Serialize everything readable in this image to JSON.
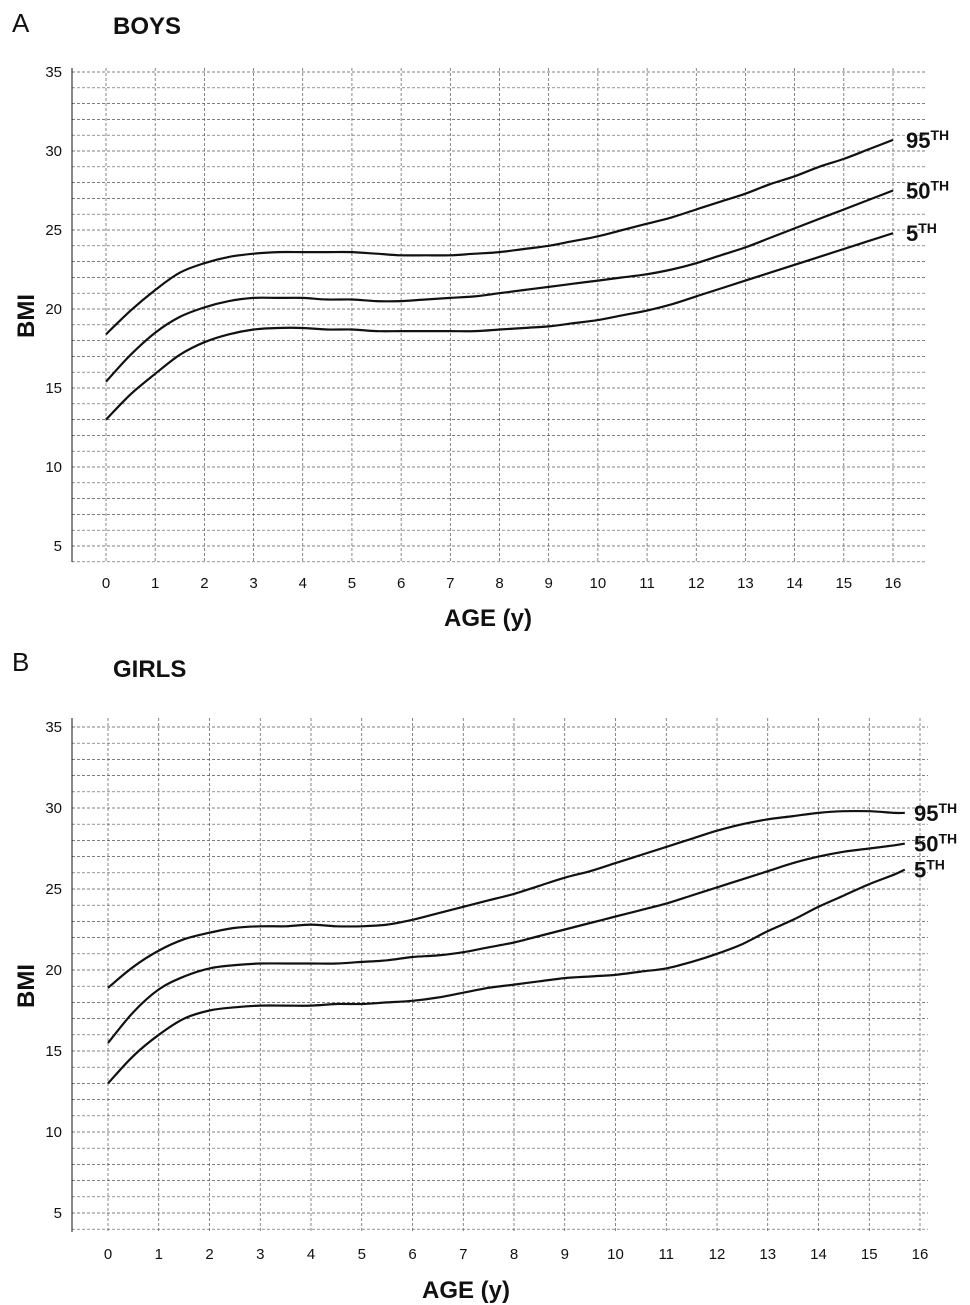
{
  "chart_data": [
    {
      "type": "line",
      "panel": "A",
      "title": "BOYS",
      "xlabel": "AGE (y)",
      "ylabel": "BMI",
      "xlim": [
        0,
        16
      ],
      "ylim": [
        5,
        35
      ],
      "xticks": [
        0,
        1,
        2,
        3,
        4,
        5,
        6,
        7,
        8,
        9,
        10,
        11,
        12,
        13,
        14,
        15,
        16
      ],
      "yticks": [
        5,
        10,
        15,
        20,
        25,
        30,
        35
      ],
      "grid": true,
      "x": [
        0,
        0.5,
        1,
        1.5,
        2,
        2.5,
        3,
        3.5,
        4,
        4.5,
        5,
        5.5,
        6,
        6.5,
        7,
        7.5,
        8,
        8.5,
        9,
        9.5,
        10,
        10.5,
        11,
        11.5,
        12,
        12.5,
        13,
        13.5,
        14,
        14.5,
        15,
        15.5,
        16
      ],
      "series": [
        {
          "name": "95",
          "suffix": "TH",
          "values": [
            18.4,
            19.9,
            21.2,
            22.3,
            22.9,
            23.3,
            23.5,
            23.6,
            23.6,
            23.6,
            23.6,
            23.5,
            23.4,
            23.4,
            23.4,
            23.5,
            23.6,
            23.8,
            24.0,
            24.3,
            24.6,
            25.0,
            25.4,
            25.8,
            26.3,
            26.8,
            27.3,
            27.9,
            28.4,
            29.0,
            29.5,
            30.1,
            30.7
          ]
        },
        {
          "name": "50",
          "suffix": "TH",
          "values": [
            15.4,
            17.1,
            18.5,
            19.5,
            20.1,
            20.5,
            20.7,
            20.7,
            20.7,
            20.6,
            20.6,
            20.5,
            20.5,
            20.6,
            20.7,
            20.8,
            21.0,
            21.2,
            21.4,
            21.6,
            21.8,
            22.0,
            22.2,
            22.5,
            22.9,
            23.4,
            23.9,
            24.5,
            25.1,
            25.7,
            26.3,
            26.9,
            27.5
          ]
        },
        {
          "name": "5",
          "suffix": "TH",
          "values": [
            13.0,
            14.6,
            15.9,
            17.1,
            17.9,
            18.4,
            18.7,
            18.8,
            18.8,
            18.7,
            18.7,
            18.6,
            18.6,
            18.6,
            18.6,
            18.6,
            18.7,
            18.8,
            18.9,
            19.1,
            19.3,
            19.6,
            19.9,
            20.3,
            20.8,
            21.3,
            21.8,
            22.3,
            22.8,
            23.3,
            23.8,
            24.3,
            24.8
          ]
        }
      ]
    },
    {
      "type": "line",
      "panel": "B",
      "title": "GIRLS",
      "xlabel": "AGE (y)",
      "ylabel": "BMI",
      "xlim": [
        0,
        16
      ],
      "ylim": [
        5,
        35
      ],
      "xticks": [
        0,
        1,
        2,
        3,
        4,
        5,
        6,
        7,
        8,
        9,
        10,
        11,
        12,
        13,
        14,
        15,
        16
      ],
      "yticks": [
        5,
        10,
        15,
        20,
        25,
        30,
        35
      ],
      "grid": true,
      "x": [
        0,
        0.5,
        1,
        1.5,
        2,
        2.5,
        3,
        3.5,
        4,
        4.5,
        5,
        5.5,
        6,
        6.5,
        7,
        7.5,
        8,
        8.5,
        9,
        9.5,
        10,
        10.5,
        11,
        11.5,
        12,
        12.5,
        13,
        13.5,
        14,
        14.5,
        15,
        15.5,
        15.7
      ],
      "series": [
        {
          "name": "95",
          "suffix": "TH",
          "values": [
            18.9,
            20.2,
            21.2,
            21.9,
            22.3,
            22.6,
            22.7,
            22.7,
            22.8,
            22.7,
            22.7,
            22.8,
            23.1,
            23.5,
            23.9,
            24.3,
            24.7,
            25.2,
            25.7,
            26.1,
            26.6,
            27.1,
            27.6,
            28.1,
            28.6,
            29.0,
            29.3,
            29.5,
            29.7,
            29.8,
            29.8,
            29.7,
            29.7
          ]
        },
        {
          "name": "50",
          "suffix": "TH",
          "values": [
            15.5,
            17.4,
            18.8,
            19.6,
            20.1,
            20.3,
            20.4,
            20.4,
            20.4,
            20.4,
            20.5,
            20.6,
            20.8,
            20.9,
            21.1,
            21.4,
            21.7,
            22.1,
            22.5,
            22.9,
            23.3,
            23.7,
            24.1,
            24.6,
            25.1,
            25.6,
            26.1,
            26.6,
            27.0,
            27.3,
            27.5,
            27.7,
            27.8
          ]
        },
        {
          "name": "5",
          "suffix": "TH",
          "values": [
            13.0,
            14.7,
            16.0,
            17.0,
            17.5,
            17.7,
            17.8,
            17.8,
            17.8,
            17.9,
            17.9,
            18.0,
            18.1,
            18.3,
            18.6,
            18.9,
            19.1,
            19.3,
            19.5,
            19.6,
            19.7,
            19.9,
            20.1,
            20.5,
            21.0,
            21.6,
            22.4,
            23.1,
            23.9,
            24.6,
            25.3,
            25.9,
            26.2
          ]
        }
      ]
    }
  ]
}
